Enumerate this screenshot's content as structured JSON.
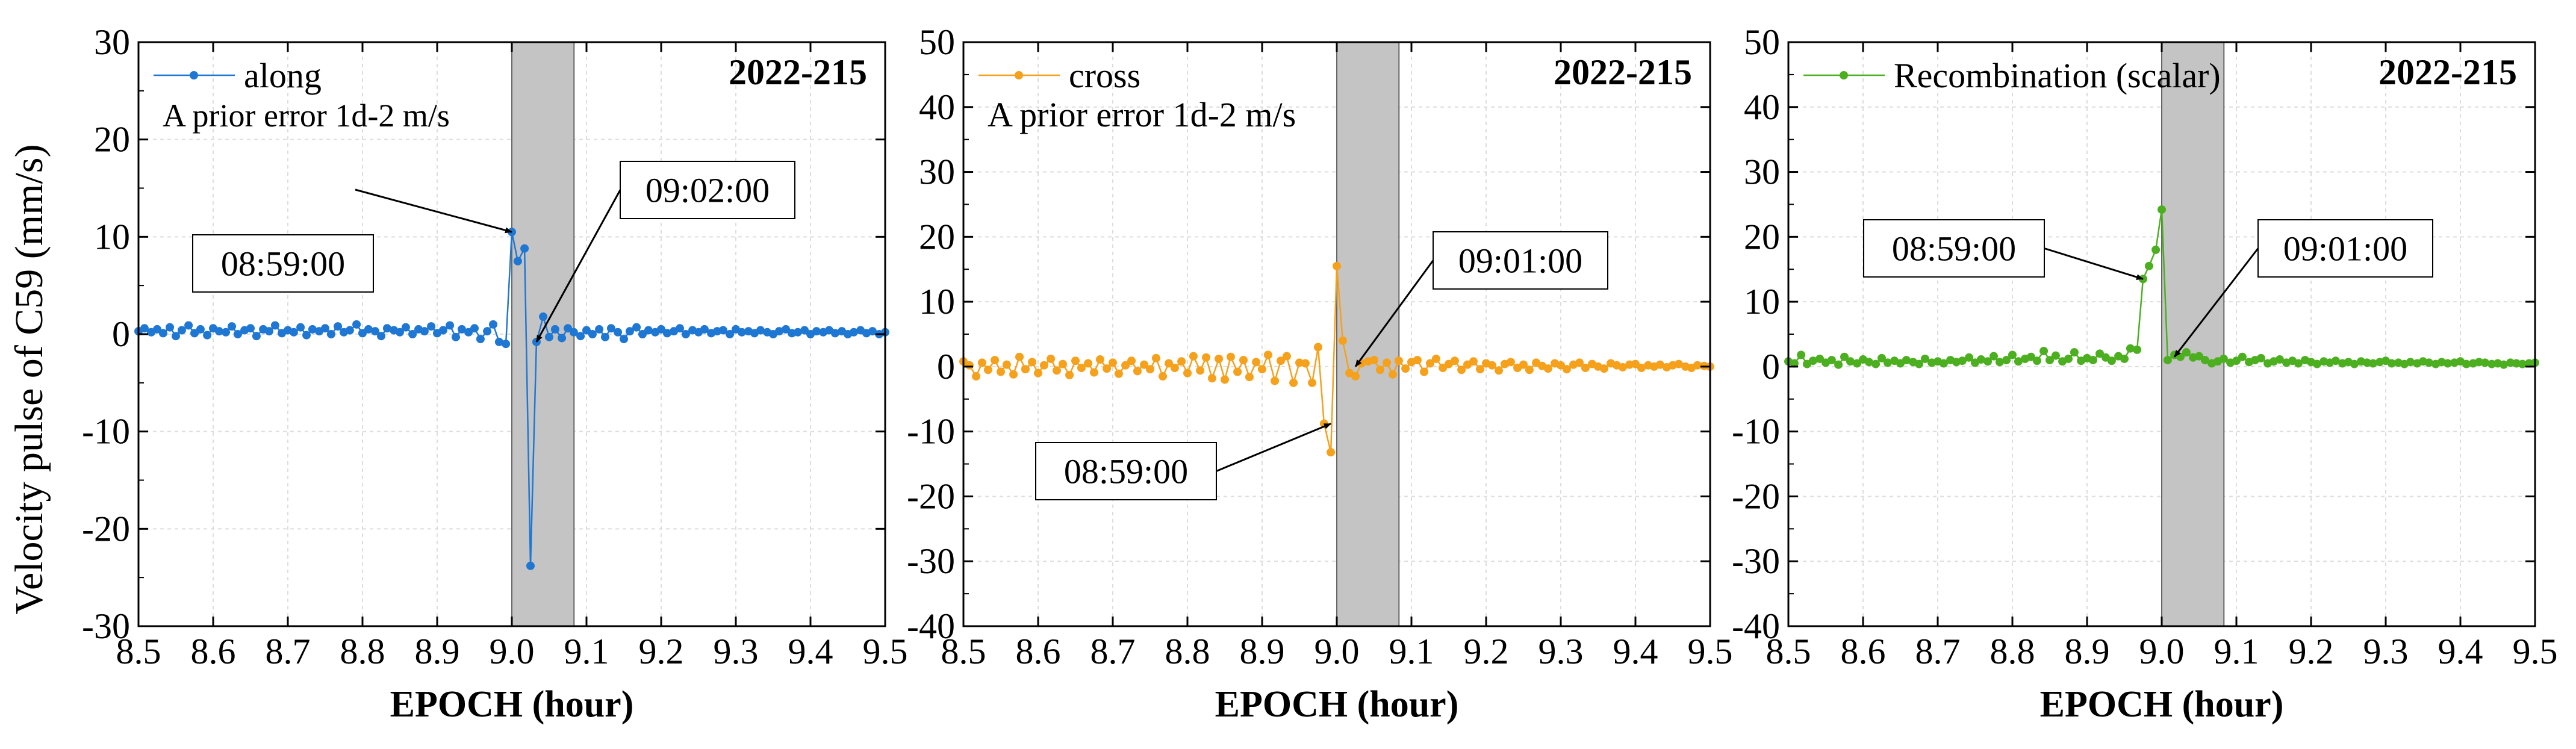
{
  "ylabel": "Velocity pulse of C59 (mm/s)",
  "chart_data": [
    {
      "type": "line",
      "panel_label": "2022-215",
      "xlabel": "EPOCH (hour)",
      "xlim": [
        8.5,
        9.5
      ],
      "ylim": [
        -30,
        30
      ],
      "x_ticks": [
        8.5,
        8.6,
        8.7,
        8.8,
        8.9,
        9.0,
        9.1,
        9.2,
        9.3,
        9.4,
        9.5
      ],
      "y_ticks": [
        -30,
        -20,
        -10,
        0,
        10,
        20,
        30
      ],
      "highlight_span": [
        9.0,
        9.0833
      ],
      "color": "#1f77d4",
      "series": [
        {
          "name": "along",
          "x": [
            8.5,
            8.508,
            8.517,
            8.525,
            8.533,
            8.542,
            8.55,
            8.558,
            8.567,
            8.575,
            8.583,
            8.592,
            8.6,
            8.608,
            8.617,
            8.625,
            8.633,
            8.642,
            8.65,
            8.658,
            8.667,
            8.675,
            8.683,
            8.692,
            8.7,
            8.708,
            8.717,
            8.725,
            8.733,
            8.742,
            8.75,
            8.758,
            8.767,
            8.775,
            8.783,
            8.792,
            8.8,
            8.808,
            8.817,
            8.825,
            8.833,
            8.842,
            8.85,
            8.858,
            8.867,
            8.875,
            8.883,
            8.892,
            8.9,
            8.908,
            8.917,
            8.925,
            8.933,
            8.942,
            8.95,
            8.958,
            8.967,
            8.975,
            8.983,
            8.992,
            9.0,
            9.008,
            9.017,
            9.025,
            9.033,
            9.042,
            9.05,
            9.058,
            9.067,
            9.075,
            9.083,
            9.092,
            9.1,
            9.108,
            9.117,
            9.125,
            9.133,
            9.142,
            9.15,
            9.158,
            9.167,
            9.175,
            9.183,
            9.192,
            9.2,
            9.208,
            9.217,
            9.225,
            9.233,
            9.242,
            9.25,
            9.258,
            9.267,
            9.275,
            9.283,
            9.292,
            9.3,
            9.308,
            9.317,
            9.325,
            9.333,
            9.342,
            9.35,
            9.358,
            9.367,
            9.375,
            9.383,
            9.392,
            9.4,
            9.408,
            9.417,
            9.425,
            9.433,
            9.442,
            9.45,
            9.458,
            9.467,
            9.475,
            9.483,
            9.492,
            9.5
          ],
          "y": [
            0.3,
            0.6,
            0.2,
            0.5,
            0.1,
            0.7,
            -0.2,
            0.4,
            0.9,
            0.1,
            0.5,
            -0.1,
            0.6,
            0.3,
            0.2,
            0.8,
            0.0,
            0.4,
            0.6,
            -0.2,
            0.5,
            0.3,
            0.9,
            0.1,
            0.4,
            0.2,
            0.7,
            -0.1,
            0.5,
            0.3,
            0.6,
            0.0,
            0.8,
            0.2,
            0.4,
            1.0,
            0.1,
            0.5,
            0.3,
            -0.2,
            0.6,
            0.4,
            0.2,
            0.7,
            0.0,
            0.5,
            0.3,
            0.8,
            0.1,
            0.4,
            0.9,
            -0.3,
            0.5,
            0.2,
            0.6,
            -0.5,
            0.3,
            1.0,
            -0.8,
            -1.0,
            10.5,
            7.5,
            8.8,
            -23.8,
            -0.8,
            1.8,
            -0.3,
            0.5,
            -0.4,
            0.6,
            0.2,
            -0.2,
            0.4,
            0.0,
            0.5,
            -0.3,
            0.6,
            0.2,
            -0.5,
            0.3,
            0.7,
            0.0,
            0.4,
            0.2,
            0.5,
            0.1,
            0.3,
            0.6,
            0.0,
            0.4,
            0.2,
            0.5,
            0.1,
            0.3,
            0.4,
            0.0,
            0.5,
            0.2,
            0.3,
            0.1,
            0.4,
            0.2,
            0.0,
            0.3,
            0.5,
            0.1,
            0.2,
            0.4,
            0.0,
            0.3,
            0.2,
            0.4,
            0.1,
            0.3,
            0.0,
            0.2,
            0.4,
            0.1,
            0.3,
            0.0,
            0.2
          ]
        }
      ],
      "note": "A prior error 1d-2 m/s",
      "annotations": [
        {
          "text": "08:59:00",
          "x": 9.0,
          "y": 10.5
        },
        {
          "text": "09:02:00",
          "x": 9.033,
          "y": -0.8
        }
      ]
    },
    {
      "type": "line",
      "panel_label": "2022-215",
      "xlabel": "EPOCH (hour)",
      "xlim": [
        8.5,
        9.5
      ],
      "ylim": [
        -40,
        50
      ],
      "x_ticks": [
        8.5,
        8.6,
        8.7,
        8.8,
        8.9,
        9.0,
        9.1,
        9.2,
        9.3,
        9.4,
        9.5
      ],
      "y_ticks": [
        -40,
        -30,
        -20,
        -10,
        0,
        10,
        20,
        30,
        40,
        50
      ],
      "highlight_span": [
        9.0,
        9.0833
      ],
      "color": "#f5a11c",
      "series": [
        {
          "name": "cross",
          "x": [
            8.5,
            8.508,
            8.517,
            8.525,
            8.533,
            8.542,
            8.55,
            8.558,
            8.567,
            8.575,
            8.583,
            8.592,
            8.6,
            8.608,
            8.617,
            8.625,
            8.633,
            8.642,
            8.65,
            8.658,
            8.667,
            8.675,
            8.683,
            8.692,
            8.7,
            8.708,
            8.717,
            8.725,
            8.733,
            8.742,
            8.75,
            8.758,
            8.767,
            8.775,
            8.783,
            8.792,
            8.8,
            8.808,
            8.817,
            8.825,
            8.833,
            8.842,
            8.85,
            8.858,
            8.867,
            8.875,
            8.883,
            8.892,
            8.9,
            8.908,
            8.917,
            8.925,
            8.933,
            8.942,
            8.95,
            8.958,
            8.967,
            8.975,
            8.983,
            8.992,
            9.0,
            9.008,
            9.017,
            9.025,
            9.033,
            9.042,
            9.05,
            9.058,
            9.067,
            9.075,
            9.083,
            9.092,
            9.1,
            9.108,
            9.117,
            9.125,
            9.133,
            9.142,
            9.15,
            9.158,
            9.167,
            9.175,
            9.183,
            9.192,
            9.2,
            9.208,
            9.217,
            9.225,
            9.233,
            9.242,
            9.25,
            9.258,
            9.267,
            9.275,
            9.283,
            9.292,
            9.3,
            9.308,
            9.317,
            9.325,
            9.333,
            9.342,
            9.35,
            9.358,
            9.367,
            9.375,
            9.383,
            9.392,
            9.4,
            9.408,
            9.417,
            9.425,
            9.433,
            9.442,
            9.45,
            9.458,
            9.467,
            9.475,
            9.483,
            9.492,
            9.5
          ],
          "y": [
            0.8,
            0.2,
            -1.5,
            0.6,
            -0.5,
            1.0,
            -0.8,
            0.3,
            -1.2,
            1.5,
            -0.4,
            0.7,
            -1.0,
            0.2,
            1.2,
            -0.6,
            0.4,
            -1.3,
            0.9,
            -0.2,
            0.5,
            -0.9,
            1.1,
            -0.3,
            0.6,
            -1.1,
            0.2,
            0.9,
            -0.7,
            0.3,
            -0.4,
            1.3,
            -1.5,
            0.5,
            -0.2,
            0.8,
            -1.0,
            1.6,
            -0.6,
            1.4,
            -1.8,
            1.2,
            -2.0,
            1.5,
            -0.8,
            1.0,
            -1.6,
            0.7,
            -0.4,
            1.8,
            -2.2,
            0.9,
            1.6,
            -2.5,
            0.6,
            0.5,
            -2.5,
            3.0,
            -8.8,
            -13.2,
            15.5,
            4.0,
            -1.0,
            -1.5,
            0.5,
            0.8,
            1.0,
            -0.5,
            0.6,
            -1.2,
            0.9,
            -0.3,
            0.7,
            1.0,
            -0.8,
            0.5,
            1.2,
            -0.2,
            0.4,
            0.9,
            -0.5,
            0.3,
            0.8,
            -0.4,
            0.5,
            0.2,
            -0.6,
            0.4,
            0.7,
            -0.2,
            0.3,
            -0.5,
            0.6,
            0.1,
            -0.3,
            0.5,
            0.2,
            -0.4,
            0.3,
            0.6,
            -0.2,
            0.4,
            0.0,
            -0.3,
            0.5,
            0.2,
            -0.1,
            0.3,
            0.4,
            -0.2,
            0.2,
            0.0,
            0.3,
            -0.1,
            0.2,
            0.4,
            0.0,
            -0.2,
            0.2,
            0.1,
            0.0
          ]
        }
      ],
      "note": "A prior error 1d-2 m/s",
      "annotations": [
        {
          "text": "09:01:00",
          "x": 9.025,
          "y": 0.0
        },
        {
          "text": "08:59:00",
          "x": 8.992,
          "y": -8.8
        }
      ]
    },
    {
      "type": "line",
      "panel_label": "2022-215",
      "xlabel": "EPOCH (hour)",
      "xlim": [
        8.5,
        9.5
      ],
      "ylim": [
        -40,
        50
      ],
      "x_ticks": [
        8.5,
        8.6,
        8.7,
        8.8,
        8.9,
        9.0,
        9.1,
        9.2,
        9.3,
        9.4,
        9.5
      ],
      "y_ticks": [
        -40,
        -30,
        -20,
        -10,
        0,
        10,
        20,
        30,
        40,
        50
      ],
      "highlight_span": [
        9.0,
        9.0833
      ],
      "color": "#4caf20",
      "series": [
        {
          "name": "Recombination (scalar)",
          "x": [
            8.5,
            8.508,
            8.517,
            8.525,
            8.533,
            8.542,
            8.55,
            8.558,
            8.567,
            8.575,
            8.583,
            8.592,
            8.6,
            8.608,
            8.617,
            8.625,
            8.633,
            8.642,
            8.65,
            8.658,
            8.667,
            8.675,
            8.683,
            8.692,
            8.7,
            8.708,
            8.717,
            8.725,
            8.733,
            8.742,
            8.75,
            8.758,
            8.767,
            8.775,
            8.783,
            8.792,
            8.8,
            8.808,
            8.817,
            8.825,
            8.833,
            8.842,
            8.85,
            8.858,
            8.867,
            8.875,
            8.883,
            8.892,
            8.9,
            8.908,
            8.917,
            8.925,
            8.933,
            8.942,
            8.95,
            8.958,
            8.967,
            8.975,
            8.983,
            8.992,
            9.0,
            9.008,
            9.017,
            9.025,
            9.033,
            9.042,
            9.05,
            9.058,
            9.067,
            9.075,
            9.083,
            9.092,
            9.1,
            9.108,
            9.117,
            9.125,
            9.133,
            9.142,
            9.15,
            9.158,
            9.167,
            9.175,
            9.183,
            9.192,
            9.2,
            9.208,
            9.217,
            9.225,
            9.233,
            9.242,
            9.25,
            9.258,
            9.267,
            9.275,
            9.283,
            9.292,
            9.3,
            9.308,
            9.317,
            9.325,
            9.333,
            9.342,
            9.35,
            9.358,
            9.367,
            9.375,
            9.383,
            9.392,
            9.4,
            9.408,
            9.417,
            9.425,
            9.433,
            9.442,
            9.45,
            9.458,
            9.467,
            9.475,
            9.483,
            9.492,
            9.5
          ],
          "y": [
            0.8,
            0.5,
            1.8,
            0.4,
            0.9,
            1.2,
            0.6,
            1.0,
            0.3,
            1.5,
            0.8,
            0.5,
            1.1,
            0.7,
            0.4,
            1.3,
            0.6,
            0.9,
            0.5,
            1.0,
            0.7,
            0.4,
            1.2,
            0.6,
            0.8,
            0.5,
            1.0,
            0.7,
            0.9,
            1.4,
            0.6,
            1.1,
            0.8,
            1.6,
            0.7,
            1.0,
            1.8,
            0.8,
            1.2,
            1.5,
            0.9,
            2.4,
            1.0,
            1.7,
            0.8,
            1.2,
            2.2,
            0.9,
            1.3,
            1.0,
            2.0,
            1.4,
            0.9,
            1.6,
            1.2,
            2.8,
            2.6,
            13.5,
            15.5,
            18.0,
            24.2,
            1.0,
            1.8,
            1.5,
            2.2,
            1.4,
            1.6,
            1.0,
            0.5,
            0.8,
            1.2,
            0.6,
            0.9,
            1.5,
            0.7,
            1.0,
            1.3,
            0.5,
            0.8,
            1.1,
            0.6,
            0.9,
            0.5,
            1.0,
            0.7,
            0.4,
            0.8,
            0.6,
            0.9,
            0.5,
            0.7,
            0.4,
            0.8,
            0.6,
            0.5,
            0.7,
            0.9,
            0.5,
            0.6,
            0.4,
            0.7,
            0.5,
            0.8,
            0.6,
            0.4,
            0.7,
            0.5,
            0.6,
            0.8,
            0.4,
            0.5,
            0.7,
            0.6,
            0.4,
            0.5,
            0.3,
            0.6,
            0.5,
            0.4,
            0.5,
            0.6
          ]
        }
      ],
      "annotations": [
        {
          "text": "08:59:00",
          "x": 8.975,
          "y": 13.5
        },
        {
          "text": "09:01:00",
          "x": 9.017,
          "y": 1.5
        }
      ]
    }
  ]
}
